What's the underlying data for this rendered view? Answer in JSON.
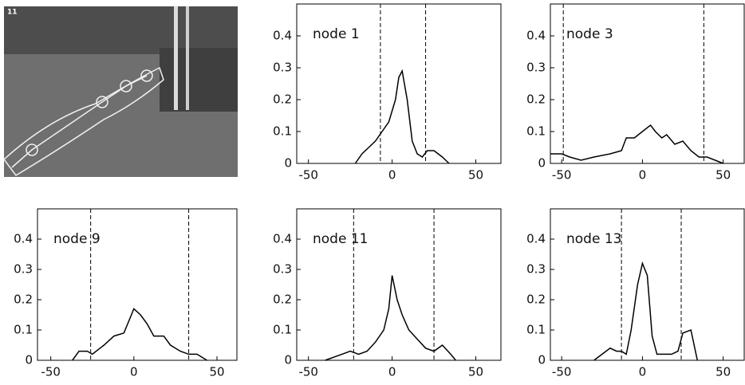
{
  "image": {
    "label": "11"
  },
  "chart_data": [
    {
      "type": "line",
      "annotation": "node 1",
      "color": "#000000",
      "x": [
        -22,
        -18,
        -14,
        -10,
        -6,
        -2,
        2,
        4,
        6,
        9,
        12,
        15,
        18,
        21,
        25,
        30,
        34
      ],
      "values": [
        0,
        0.03,
        0.05,
        0.07,
        0.1,
        0.13,
        0.2,
        0.27,
        0.29,
        0.2,
        0.07,
        0.03,
        0.02,
        0.04,
        0.04,
        0.02,
        0
      ],
      "vlines": [
        -7,
        20
      ],
      "xlim": [
        -57,
        65
      ],
      "ylim": [
        0,
        0.5
      ],
      "xticks": [
        -50,
        0,
        50
      ],
      "yticks": [
        0,
        0.1,
        0.2,
        0.3,
        0.4
      ]
    },
    {
      "type": "line",
      "annotation": "node 3",
      "color": "#000000",
      "x": [
        -57,
        -50,
        -45,
        -38,
        -30,
        -20,
        -13,
        -10,
        -5,
        0,
        5,
        8,
        12,
        15,
        20,
        25,
        30,
        35,
        40,
        45,
        50
      ],
      "values": [
        0.03,
        0.03,
        0.02,
        0.01,
        0.02,
        0.03,
        0.04,
        0.08,
        0.08,
        0.1,
        0.12,
        0.1,
        0.08,
        0.09,
        0.06,
        0.07,
        0.04,
        0.02,
        0.02,
        0.01,
        0
      ],
      "vlines": [
        -49,
        38
      ],
      "xlim": [
        -57,
        63
      ],
      "ylim": [
        0,
        0.5
      ],
      "xticks": [
        -50,
        0,
        50
      ],
      "yticks": [
        0,
        0.1,
        0.2,
        0.3,
        0.4
      ]
    },
    {
      "type": "line",
      "annotation": "node 9",
      "color": "#000000",
      "x": [
        -37,
        -33,
        -28,
        -25,
        -18,
        -12,
        -6,
        0,
        4,
        8,
        12,
        18,
        22,
        28,
        33,
        38,
        44
      ],
      "values": [
        0,
        0.03,
        0.03,
        0.02,
        0.05,
        0.08,
        0.09,
        0.17,
        0.15,
        0.12,
        0.08,
        0.08,
        0.05,
        0.03,
        0.02,
        0.02,
        0
      ],
      "vlines": [
        -26,
        33
      ],
      "xlim": [
        -58,
        62
      ],
      "ylim": [
        0,
        0.5
      ],
      "xticks": [
        -50,
        0,
        50
      ],
      "yticks": [
        0,
        0.1,
        0.2,
        0.3,
        0.4
      ]
    },
    {
      "type": "line",
      "annotation": "node 11",
      "color": "#000000",
      "x": [
        -40,
        -30,
        -25,
        -20,
        -15,
        -10,
        -5,
        -2,
        0,
        3,
        6,
        10,
        15,
        20,
        25,
        30,
        35,
        38
      ],
      "values": [
        0,
        0.02,
        0.03,
        0.02,
        0.03,
        0.06,
        0.1,
        0.17,
        0.28,
        0.2,
        0.15,
        0.1,
        0.07,
        0.04,
        0.03,
        0.05,
        0.02,
        0
      ],
      "vlines": [
        -23,
        25
      ],
      "xlim": [
        -57,
        65
      ],
      "ylim": [
        0,
        0.5
      ],
      "xticks": [
        -50,
        0,
        50
      ],
      "yticks": [
        0,
        0.1,
        0.2,
        0.3,
        0.4
      ]
    },
    {
      "type": "line",
      "annotation": "node 13",
      "color": "#000000",
      "x": [
        -30,
        -25,
        -20,
        -16,
        -13,
        -10,
        -7,
        -3,
        0,
        3,
        6,
        9,
        14,
        18,
        22,
        25,
        30,
        34
      ],
      "values": [
        0,
        0.02,
        0.04,
        0.03,
        0.03,
        0.02,
        0.1,
        0.25,
        0.32,
        0.28,
        0.08,
        0.02,
        0.02,
        0.02,
        0.03,
        0.09,
        0.1,
        0
      ],
      "vlines": [
        -13,
        24
      ],
      "xlim": [
        -57,
        63
      ],
      "ylim": [
        0,
        0.5
      ],
      "xticks": [
        -50,
        0,
        50
      ],
      "yticks": [
        0,
        0.1,
        0.2,
        0.3,
        0.4
      ]
    }
  ]
}
